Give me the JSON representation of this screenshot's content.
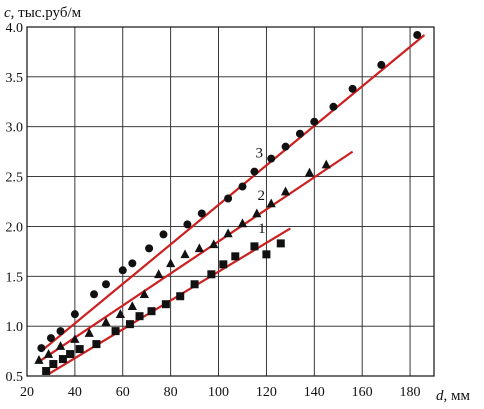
{
  "chart_data": {
    "type": "scatter",
    "title": "",
    "ylabel_var": "c",
    "ylabel_unit": ", тыс.руб/м",
    "xlabel_var": "d",
    "xlabel_unit": ", мм",
    "xlim": [
      20,
      190
    ],
    "ylim": [
      0.5,
      4.0
    ],
    "x_ticks": [
      "20",
      "40",
      "60",
      "80",
      "100",
      "120",
      "140",
      "160",
      "180"
    ],
    "y_ticks": [
      "0.5",
      "1.0",
      "1.5",
      "2.0",
      "2.5",
      "3.0",
      "3.5",
      "4.0"
    ],
    "grid": true,
    "trend_color": "#cc1f1f",
    "marker_color": "#111111",
    "series": [
      {
        "name": "1",
        "marker": "square",
        "points": [
          [
            28,
            0.55
          ],
          [
            31,
            0.62
          ],
          [
            35,
            0.67
          ],
          [
            38,
            0.72
          ],
          [
            42,
            0.77
          ],
          [
            49,
            0.82
          ],
          [
            57,
            0.95
          ],
          [
            63,
            1.02
          ],
          [
            67,
            1.1
          ],
          [
            72,
            1.15
          ],
          [
            78,
            1.22
          ],
          [
            84,
            1.3
          ],
          [
            90,
            1.42
          ],
          [
            97,
            1.52
          ],
          [
            102,
            1.62
          ],
          [
            107,
            1.7
          ],
          [
            115,
            1.8
          ],
          [
            120,
            1.72
          ],
          [
            126,
            1.83
          ]
        ],
        "trend": [
          [
            29,
            0.52
          ],
          [
            130,
            1.98
          ]
        ]
      },
      {
        "name": "2",
        "marker": "triangle",
        "points": [
          [
            25,
            0.66
          ],
          [
            29,
            0.72
          ],
          [
            34,
            0.8
          ],
          [
            40,
            0.87
          ],
          [
            46,
            0.93
          ],
          [
            53,
            1.04
          ],
          [
            59,
            1.12
          ],
          [
            64,
            1.2
          ],
          [
            69,
            1.32
          ],
          [
            75,
            1.52
          ],
          [
            80,
            1.63
          ],
          [
            86,
            1.72
          ],
          [
            92,
            1.78
          ],
          [
            98,
            1.82
          ],
          [
            104,
            1.93
          ],
          [
            110,
            2.03
          ],
          [
            116,
            2.13
          ],
          [
            122,
            2.23
          ],
          [
            128,
            2.35
          ],
          [
            138,
            2.54
          ],
          [
            145,
            2.62
          ]
        ],
        "trend": [
          [
            26,
            0.66
          ],
          [
            156,
            2.75
          ]
        ]
      },
      {
        "name": "3",
        "marker": "circle",
        "points": [
          [
            26,
            0.78
          ],
          [
            30,
            0.88
          ],
          [
            34,
            0.95
          ],
          [
            40,
            1.12
          ],
          [
            48,
            1.32
          ],
          [
            53,
            1.42
          ],
          [
            60,
            1.56
          ],
          [
            64,
            1.63
          ],
          [
            71,
            1.78
          ],
          [
            77,
            1.92
          ],
          [
            87,
            2.02
          ],
          [
            93,
            2.13
          ],
          [
            104,
            2.28
          ],
          [
            110,
            2.4
          ],
          [
            115,
            2.55
          ],
          [
            122,
            2.68
          ],
          [
            128,
            2.8
          ],
          [
            134,
            2.93
          ],
          [
            140,
            3.05
          ],
          [
            148,
            3.2
          ],
          [
            156,
            3.38
          ],
          [
            168,
            3.62
          ],
          [
            183,
            3.92
          ]
        ],
        "trend": [
          [
            26,
            0.75
          ],
          [
            186,
            3.92
          ]
        ]
      }
    ]
  }
}
